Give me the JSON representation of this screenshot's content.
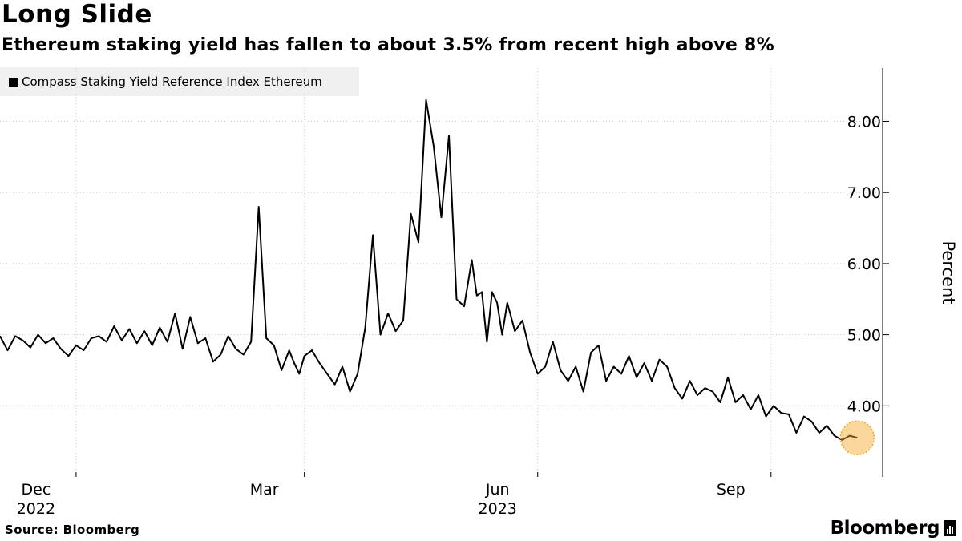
{
  "header": {
    "title": "Long Slide",
    "subtitle": "Ethereum staking yield has fallen to about 3.5% from recent high above 8%"
  },
  "footer": {
    "source": "Source: Bloomberg",
    "brand": "Bloomberg"
  },
  "chart_data": {
    "type": "line",
    "title": "Long Slide",
    "subtitle": "Ethereum staking yield has fallen to about 3.5% from recent high above 8%",
    "ylabel": "Percent",
    "xlabel": "",
    "ylim": [
      3.0,
      8.75
    ],
    "xlim": [
      "2022-11-01",
      "2023-10-15"
    ],
    "y_ticks": [
      4.0,
      5.0,
      6.0,
      7.0,
      8.0
    ],
    "y_tick_labels": [
      "4.00",
      "5.00",
      "6.00",
      "7.00",
      "8.00"
    ],
    "x_ticks": [
      {
        "date": "2022-12-01",
        "label": "Dec",
        "year": "2022"
      },
      {
        "date": "2023-03-01",
        "label": "Mar",
        "year": ""
      },
      {
        "date": "2023-06-01",
        "label": "Jun",
        "year": "2023"
      },
      {
        "date": "2023-09-01",
        "label": "Sep",
        "year": ""
      }
    ],
    "grid": true,
    "legend_position": "top-left",
    "y_axis_position": "right",
    "colors": {
      "line": "#000000",
      "highlight": "#f5a623"
    },
    "highlight_last_point": true,
    "series": [
      {
        "name": "Compass Staking Yield Reference Index Ethereum",
        "x": [
          "2022-11-01",
          "2022-11-04",
          "2022-11-07",
          "2022-11-10",
          "2022-11-13",
          "2022-11-16",
          "2022-11-19",
          "2022-11-22",
          "2022-11-25",
          "2022-11-28",
          "2022-12-01",
          "2022-12-04",
          "2022-12-07",
          "2022-12-10",
          "2022-12-13",
          "2022-12-16",
          "2022-12-19",
          "2022-12-22",
          "2022-12-25",
          "2022-12-28",
          "2022-12-31",
          "2023-01-03",
          "2023-01-06",
          "2023-01-09",
          "2023-01-12",
          "2023-01-15",
          "2023-01-18",
          "2023-01-21",
          "2023-01-24",
          "2023-01-27",
          "2023-01-30",
          "2023-02-02",
          "2023-02-05",
          "2023-02-08",
          "2023-02-11",
          "2023-02-14",
          "2023-02-17",
          "2023-02-20",
          "2023-02-23",
          "2023-02-25",
          "2023-02-27",
          "2023-03-01",
          "2023-03-04",
          "2023-03-07",
          "2023-03-10",
          "2023-03-13",
          "2023-03-16",
          "2023-03-19",
          "2023-03-22",
          "2023-03-25",
          "2023-03-28",
          "2023-03-31",
          "2023-04-03",
          "2023-04-06",
          "2023-04-09",
          "2023-04-12",
          "2023-04-15",
          "2023-04-18",
          "2023-04-21",
          "2023-04-24",
          "2023-04-27",
          "2023-04-30",
          "2023-05-03",
          "2023-05-06",
          "2023-05-08",
          "2023-05-10",
          "2023-05-12",
          "2023-05-14",
          "2023-05-16",
          "2023-05-18",
          "2023-05-20",
          "2023-05-23",
          "2023-05-26",
          "2023-05-29",
          "2023-06-01",
          "2023-06-04",
          "2023-06-07",
          "2023-06-10",
          "2023-06-13",
          "2023-06-16",
          "2023-06-19",
          "2023-06-22",
          "2023-06-25",
          "2023-06-28",
          "2023-07-01",
          "2023-07-04",
          "2023-07-07",
          "2023-07-10",
          "2023-07-13",
          "2023-07-16",
          "2023-07-19",
          "2023-07-22",
          "2023-07-25",
          "2023-07-28",
          "2023-07-31",
          "2023-08-03",
          "2023-08-06",
          "2023-08-09",
          "2023-08-12",
          "2023-08-15",
          "2023-08-18",
          "2023-08-21",
          "2023-08-24",
          "2023-08-27",
          "2023-08-30",
          "2023-09-02",
          "2023-09-05",
          "2023-09-08",
          "2023-09-11",
          "2023-09-14",
          "2023-09-17",
          "2023-09-20",
          "2023-09-23",
          "2023-09-26",
          "2023-09-29",
          "2023-10-02",
          "2023-10-05"
        ],
        "values": [
          4.98,
          4.78,
          4.98,
          4.92,
          4.82,
          5.0,
          4.88,
          4.95,
          4.8,
          4.7,
          4.85,
          4.78,
          4.95,
          4.98,
          4.9,
          5.12,
          4.92,
          5.08,
          4.88,
          5.05,
          4.85,
          5.1,
          4.9,
          5.3,
          4.8,
          5.25,
          4.88,
          4.95,
          4.62,
          4.72,
          4.98,
          4.8,
          4.72,
          4.9,
          6.8,
          4.95,
          4.85,
          4.5,
          4.78,
          4.6,
          4.45,
          4.7,
          4.78,
          4.6,
          4.45,
          4.3,
          4.55,
          4.2,
          4.45,
          5.1,
          6.4,
          5.0,
          5.3,
          5.05,
          5.2,
          6.7,
          6.3,
          8.3,
          7.65,
          6.65,
          7.8,
          5.5,
          5.4,
          6.05,
          5.55,
          5.6,
          4.9,
          5.6,
          5.45,
          5.0,
          5.45,
          5.05,
          5.2,
          4.75,
          4.45,
          4.55,
          4.9,
          4.5,
          4.35,
          4.55,
          4.2,
          4.75,
          4.85,
          4.35,
          4.55,
          4.45,
          4.7,
          4.4,
          4.6,
          4.35,
          4.65,
          4.55,
          4.25,
          4.1,
          4.35,
          4.15,
          4.25,
          4.2,
          4.05,
          4.4,
          4.05,
          4.15,
          3.95,
          4.15,
          3.85,
          4.0,
          3.9,
          3.88,
          3.62,
          3.85,
          3.78,
          3.62,
          3.72,
          3.58,
          3.52,
          3.58,
          3.55
        ]
      }
    ]
  }
}
